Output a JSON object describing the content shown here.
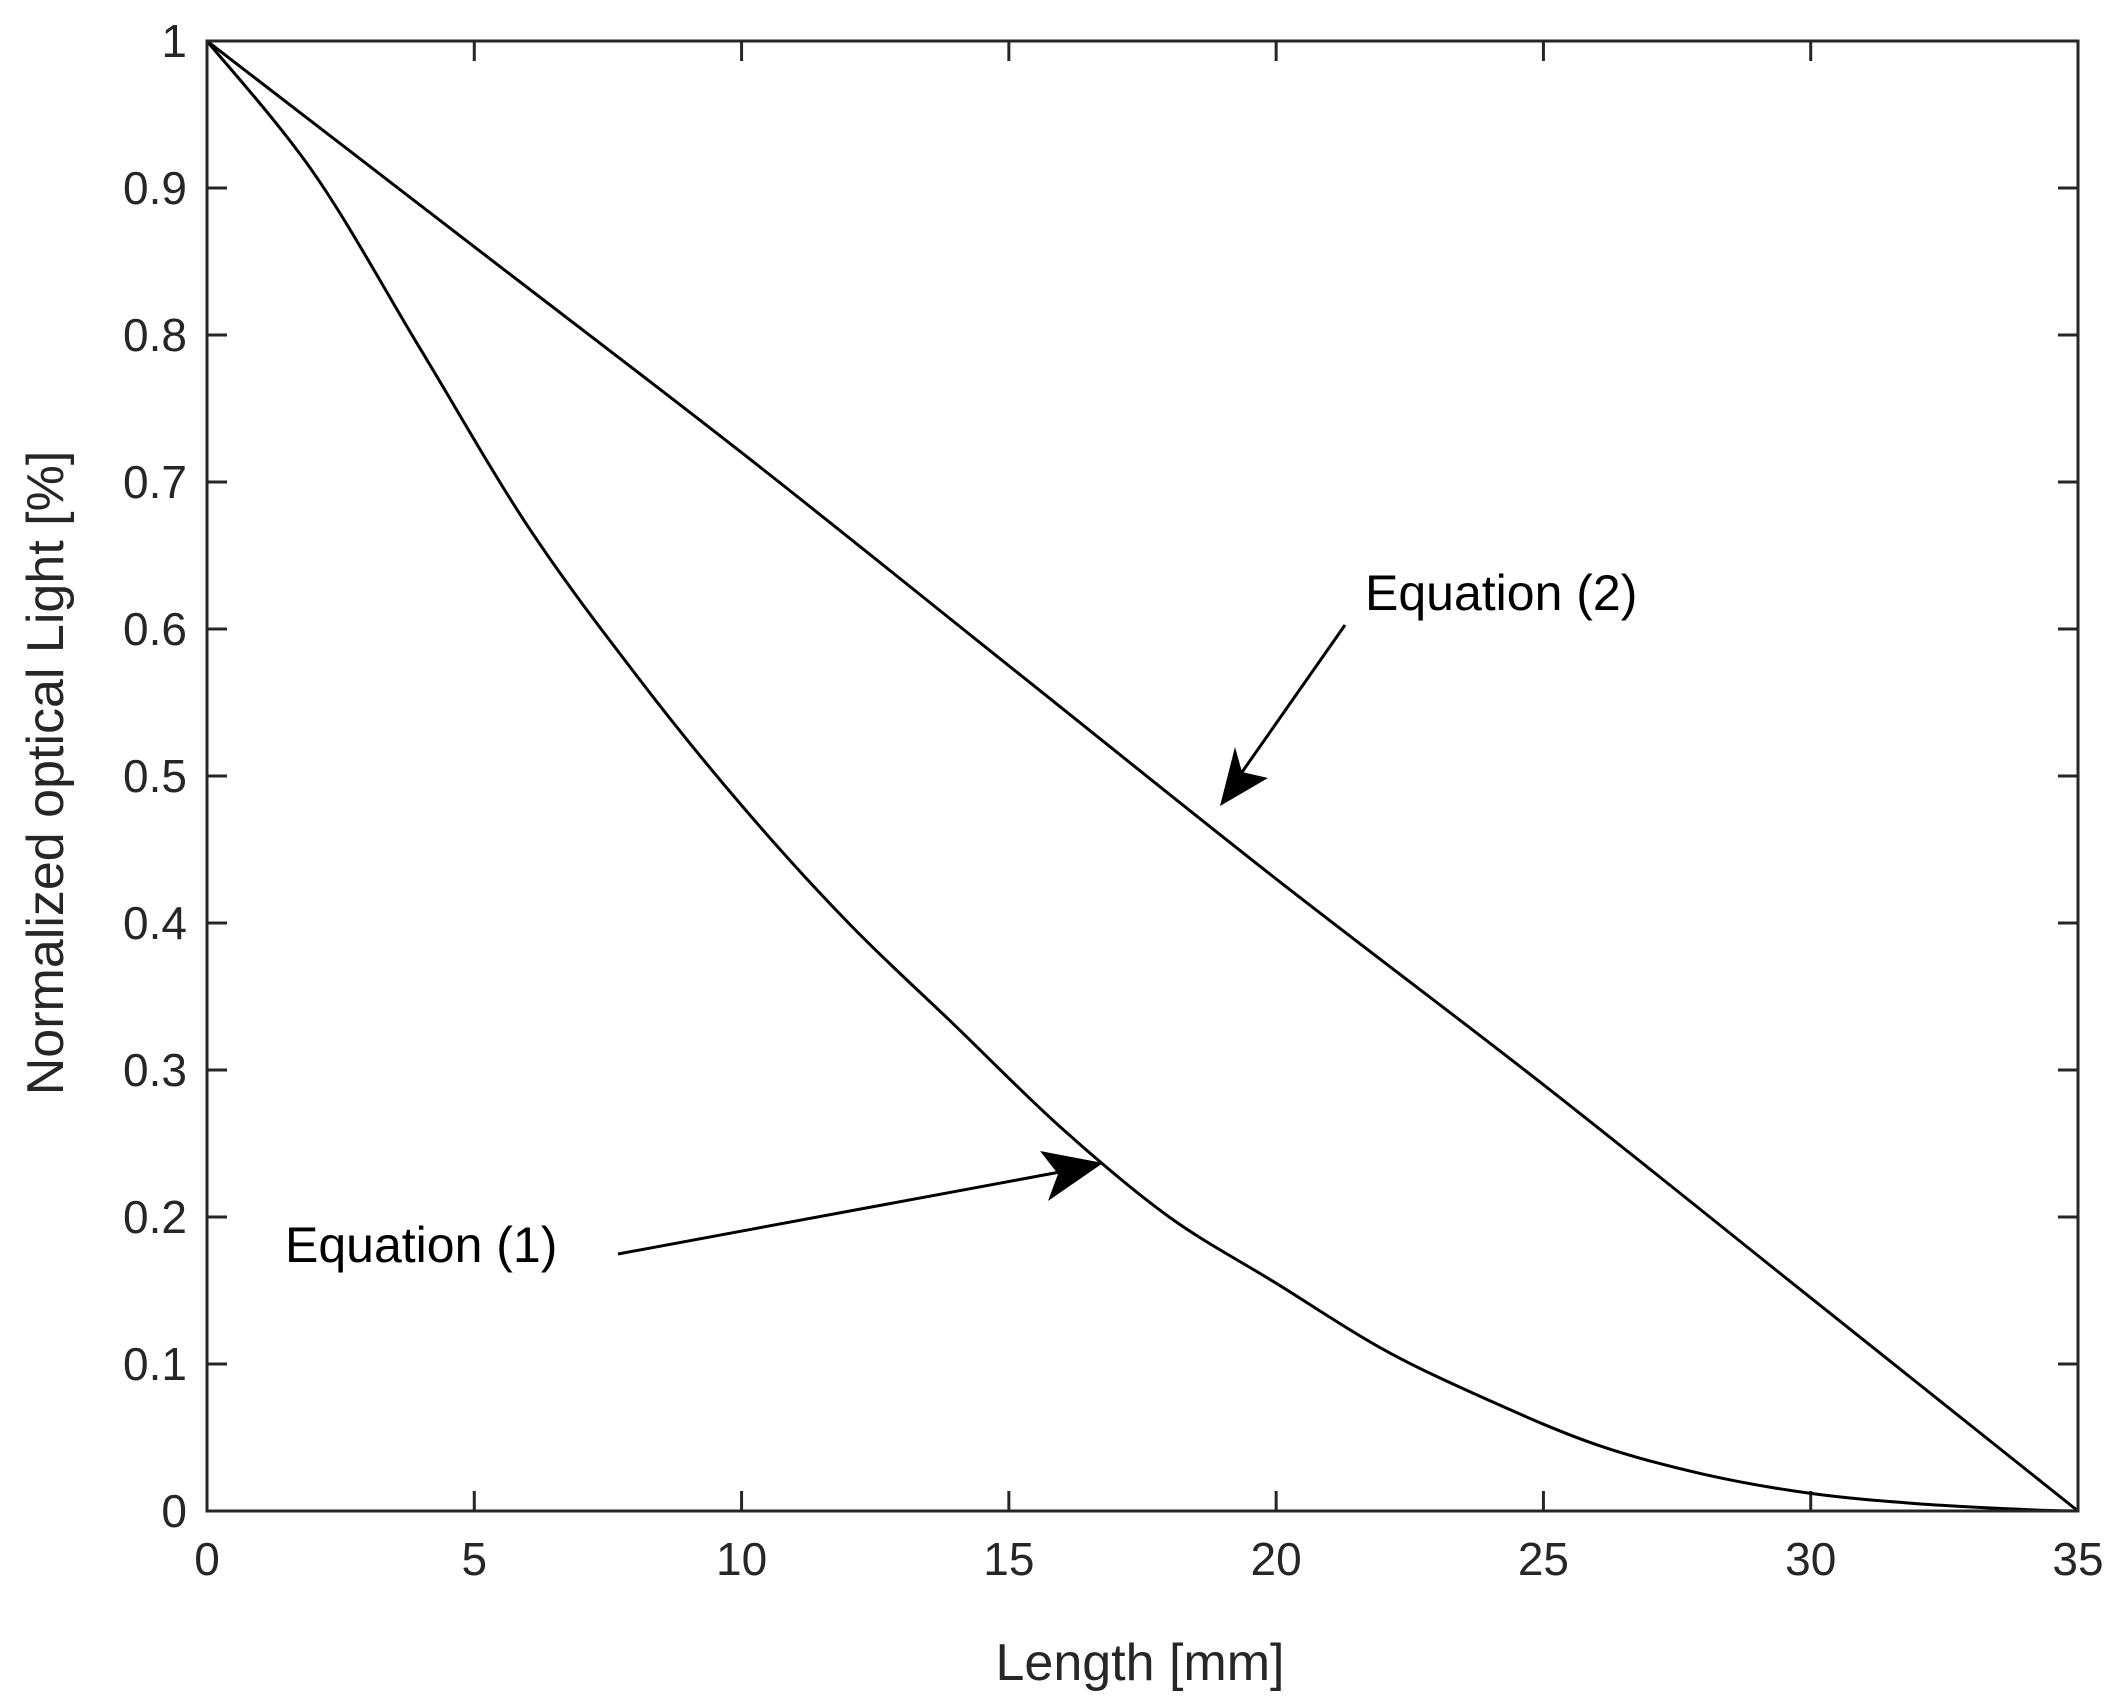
{
  "chart_data": {
    "type": "line",
    "xlabel": "Length [mm]",
    "ylabel": "Normalized optical Light [%]",
    "xlim": [
      0,
      35
    ],
    "ylim": [
      0,
      1
    ],
    "xticks": [
      0,
      5,
      10,
      15,
      20,
      25,
      30,
      35
    ],
    "yticks": [
      0,
      0.1,
      0.2,
      0.3,
      0.4,
      0.5,
      0.6,
      0.7,
      0.8,
      0.9,
      1
    ],
    "xtick_labels": [
      "0",
      "5",
      "10",
      "15",
      "20",
      "25",
      "30",
      "35"
    ],
    "ytick_labels": [
      "0",
      "0.1",
      "0.2",
      "0.3",
      "0.4",
      "0.5",
      "0.6",
      "0.7",
      "0.8",
      "0.9",
      "1"
    ],
    "grid": false,
    "series": [
      {
        "x": [
          0,
          2,
          4,
          6,
          8,
          10,
          12,
          14,
          16,
          18,
          20,
          22,
          24,
          26,
          28,
          30,
          32,
          34,
          35
        ],
        "values": [
          1.0,
          0.91,
          0.79,
          0.67,
          0.57,
          0.48,
          0.4,
          0.33,
          0.26,
          0.2,
          0.155,
          0.11,
          0.075,
          0.045,
          0.025,
          0.012,
          0.005,
          0.001,
          0.0
        ]
      },
      {
        "x": [
          0,
          5,
          10,
          15,
          20,
          25,
          30,
          35
        ],
        "values": [
          1.0,
          0.86,
          0.72,
          0.575,
          0.43,
          0.29,
          0.145,
          0.0
        ]
      }
    ],
    "annotations": [
      {
        "text": "Equation (1)",
        "target": [
          16.5,
          0.23
        ]
      },
      {
        "text": "Equation (2)",
        "target": [
          18.9,
          0.48
        ]
      }
    ]
  }
}
